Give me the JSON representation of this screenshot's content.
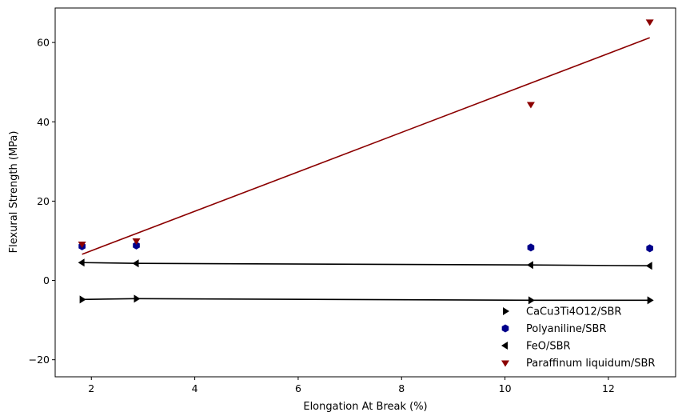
{
  "chart_data": {
    "type": "scatter",
    "title": "",
    "xlabel": "Elongation At Break (%)",
    "ylabel": "Flexural Strength (MPa)",
    "xlim": [
      1.3,
      13.3
    ],
    "ylim": [
      -24.3,
      68.7
    ],
    "xticks": [
      2,
      4,
      6,
      8,
      10,
      12
    ],
    "yticks": [
      -20,
      0,
      20,
      40,
      60
    ],
    "grid": false,
    "legend_position": "lower-right",
    "series": [
      {
        "name": "CaCu3Ti4O12/SBR",
        "marker": "triangle-right",
        "color": "#000000",
        "x": [
          1.82,
          2.87,
          10.5,
          12.8
        ],
        "y": [
          -4.8,
          -4.6,
          -5.0,
          -5.0
        ],
        "connect_line": true
      },
      {
        "name": "Polyaniline/SBR",
        "marker": "hexagon",
        "color": "#00008b",
        "x": [
          1.82,
          2.87,
          10.5,
          12.8
        ],
        "y": [
          8.6,
          8.8,
          8.3,
          8.1
        ],
        "connect_line": false
      },
      {
        "name": "FeO/SBR",
        "marker": "triangle-left",
        "color": "#000000",
        "x": [
          1.82,
          2.87,
          10.5,
          12.8
        ],
        "y": [
          4.5,
          4.3,
          3.9,
          3.7
        ],
        "connect_line": true
      },
      {
        "name": "Paraffinum liquidum/SBR",
        "marker": "triangle-down",
        "color": "#8b0000",
        "x": [
          1.82,
          2.87,
          10.5,
          12.8
        ],
        "y": [
          9.2,
          10.0,
          44.4,
          65.2
        ],
        "fit_line": {
          "x": [
            1.82,
            12.8
          ],
          "y": [
            6.6,
            61.2
          ]
        }
      }
    ]
  }
}
